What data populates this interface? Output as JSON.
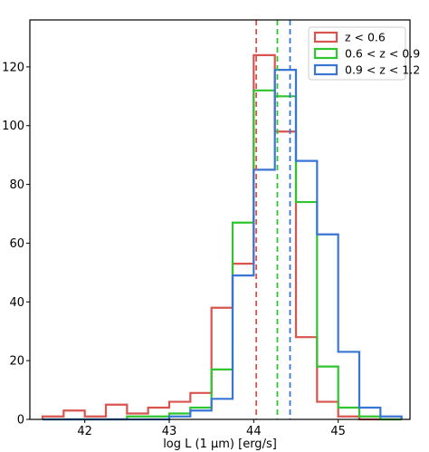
{
  "chart_data": {
    "type": "histogram-step",
    "xlabel": "log L (1 μm) [erg/s]",
    "ylabel": "",
    "xlim": [
      41.35,
      45.85
    ],
    "ylim": [
      0,
      136
    ],
    "x_ticks": [
      42,
      43,
      44,
      45
    ],
    "y_ticks": [
      0,
      20,
      40,
      60,
      80,
      100,
      120
    ],
    "grid": false,
    "legend_position": "top-right",
    "bin_edges": [
      41.5,
      41.75,
      42.0,
      42.25,
      42.5,
      42.75,
      43.0,
      43.25,
      43.5,
      43.75,
      44.0,
      44.25,
      44.5,
      44.75,
      45.0,
      45.25,
      45.5,
      45.75
    ],
    "series": [
      {
        "name": "z < 0.6",
        "color": "#d9534f",
        "counts": [
          1,
          3,
          1,
          5,
          2,
          4,
          6,
          9,
          38,
          53,
          124,
          98,
          28,
          6,
          1,
          0,
          0
        ],
        "median": 44.03
      },
      {
        "name": "0.6 < z < 0.9",
        "color": "#2ec52e",
        "counts": [
          0,
          0,
          0,
          0,
          1,
          1,
          2,
          4,
          17,
          67,
          112,
          110,
          74,
          18,
          4,
          1,
          0
        ],
        "median": 44.28
      },
      {
        "name": "0.9 < z < 1.2",
        "color": "#3a75d6",
        "counts": [
          0,
          0,
          0,
          0,
          0,
          0,
          1,
          3,
          7,
          49,
          85,
          119,
          88,
          63,
          23,
          4,
          1
        ],
        "median": 44.43
      }
    ]
  }
}
